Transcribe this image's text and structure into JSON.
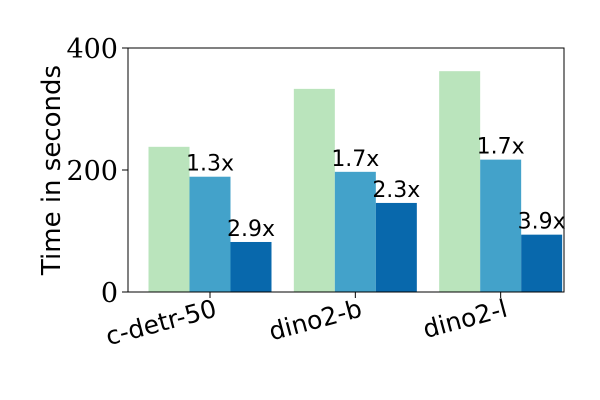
{
  "chart_data": {
    "type": "bar",
    "title": "",
    "xlabel": "",
    "ylabel": "Time in seconds",
    "categories": [
      "c-detr-50",
      "dino2-b",
      "dino2-l"
    ],
    "ylim": [
      0,
      400
    ],
    "yticks": [
      0,
      200,
      400
    ],
    "grid": false,
    "legend": "none",
    "series": [
      {
        "values": [
          238,
          333,
          362
        ],
        "color": "#bae4bc",
        "labels": [
          "",
          "",
          ""
        ]
      },
      {
        "values": [
          189,
          197,
          217
        ],
        "color": "#43a2ca",
        "labels": [
          "1.3x",
          "1.7x",
          "1.7x"
        ]
      },
      {
        "values": [
          82,
          146,
          94
        ],
        "color": "#0868ac",
        "labels": [
          "2.9x",
          "2.3x",
          "3.9x"
        ]
      }
    ]
  }
}
